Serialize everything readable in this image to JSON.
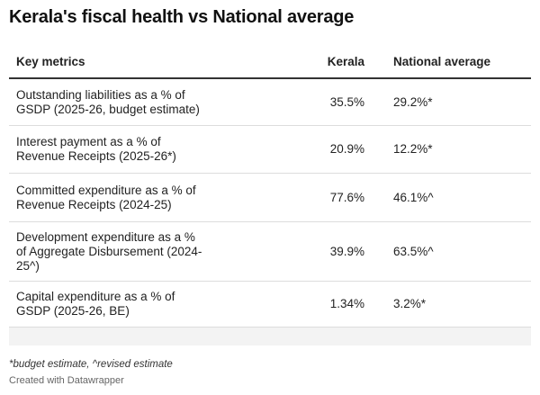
{
  "header": {
    "title": "Kerala's fiscal health vs National average"
  },
  "table": {
    "columns": [
      "Key metrics",
      "Kerala",
      "National average"
    ],
    "rows": [
      [
        "Outstanding liabilities as a % of GSDP (2025-26, budget estimate)",
        "35.5%",
        "29.2%*"
      ],
      [
        "Interest payment as a % of Revenue Receipts (2025-26*)",
        "20.9%",
        "12.2%*"
      ],
      [
        "Committed expenditure as a % of Revenue Receipts (2024-25)",
        "77.6%",
        "46.1%^"
      ],
      [
        "Development expenditure as a % of Aggregate Disbursement (2024-25^)",
        "39.9%",
        "63.5%^"
      ],
      [
        "Capital expenditure as a % of GSDP (2025-26, BE)",
        "1.34%",
        "3.2%*"
      ]
    ]
  },
  "footer": {
    "note": "*budget estimate, ^revised estimate",
    "credit": "Created with Datawrapper"
  }
}
